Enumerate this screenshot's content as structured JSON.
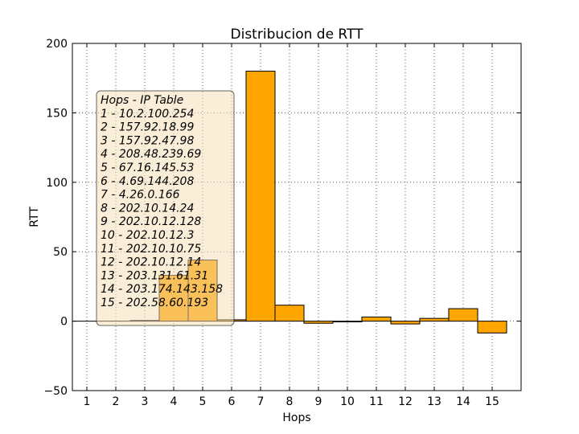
{
  "chart_data": {
    "type": "bar",
    "title": "Distribucion de RTT",
    "xlabel": "Hops",
    "ylabel": "RTT",
    "categories": [
      "1",
      "2",
      "3",
      "4",
      "5",
      "6",
      "7",
      "8",
      "9",
      "10",
      "11",
      "12",
      "13",
      "14",
      "15"
    ],
    "values": [
      0,
      0,
      0.5,
      33,
      44,
      1,
      180,
      11.5,
      -1.5,
      -0.5,
      3,
      -2,
      2,
      9,
      -8.5
    ],
    "ylim": [
      -50,
      200
    ],
    "yticks": [
      -50,
      0,
      50,
      100,
      150,
      200
    ],
    "xlim": [
      0.5,
      16
    ],
    "grid": true,
    "bar_color": "#ffa500",
    "legend": {
      "placement": "upper-left",
      "title": "Hops - IP Table",
      "entries": [
        "1 - 10.2.100.254",
        "2 - 157.92.18.99",
        "3 - 157.92.47.98",
        "4 - 208.48.239.69",
        "5 - 67.16.145.53",
        "6 - 4.69.144.208",
        "7 - 4.26.0.166",
        "8 - 202.10.14.24",
        "9 - 202.10.12.128",
        "10 - 202.10.12.3",
        "11 - 202.10.10.75",
        "12 - 202.10.12.14",
        "13 - 203.131.61.31",
        "14 - 203.174.143.158",
        "15 - 202.58.60.193"
      ],
      "background": "#f5deb3"
    }
  }
}
